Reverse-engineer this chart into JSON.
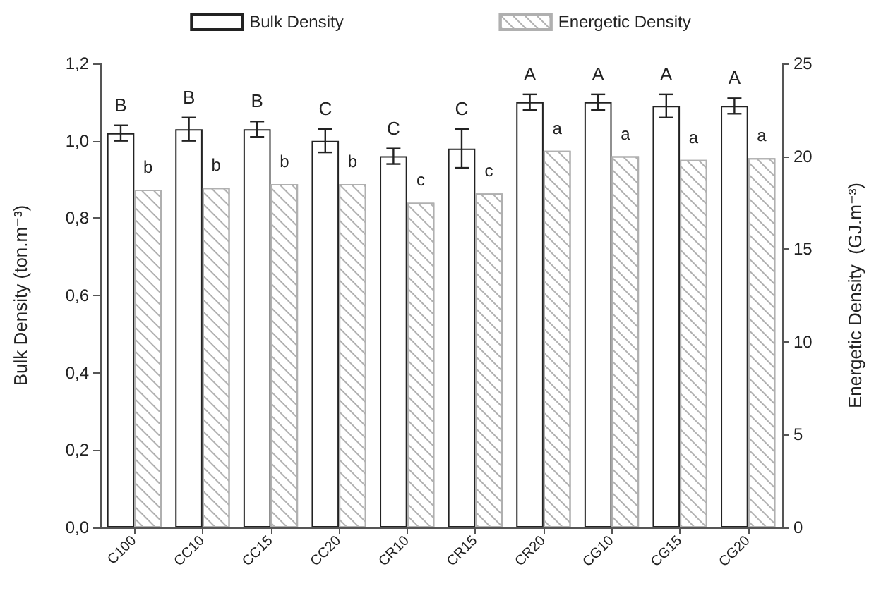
{
  "chart_data": {
    "type": "bar",
    "ylabel": "Bulk Density (ton.m⁻³)",
    "y2label": "Energetic Density  (GJ.m⁻³)",
    "categories": [
      "C100",
      "CC10",
      "CC15",
      "CC20",
      "CR10",
      "CR15",
      "CR20",
      "CG10",
      "CG15",
      "CG20"
    ],
    "series": [
      {
        "name": "Bulk Density",
        "color": "#ffffff",
        "values": [
          1.02,
          1.03,
          1.03,
          1.0,
          0.96,
          0.98,
          1.1,
          1.1,
          1.09,
          1.09
        ],
        "errors": [
          0.02,
          0.03,
          0.02,
          0.03,
          0.02,
          0.05,
          0.02,
          0.02,
          0.03,
          0.02
        ],
        "value_labels": [
          "B",
          "B",
          "B",
          "C",
          "C",
          "C",
          "A",
          "A",
          "A",
          "A"
        ]
      },
      {
        "name": "Energetic Density",
        "color": "#b0b0b0",
        "axis": "y2",
        "values": [
          18.2,
          18.3,
          18.5,
          18.5,
          17.5,
          18.0,
          20.3,
          20.0,
          19.8,
          19.9
        ],
        "value_labels": [
          "b",
          "b",
          "b",
          "b",
          "c",
          "c",
          "a",
          "a",
          "a",
          "a"
        ]
      }
    ],
    "ylim": [
      0,
      1.2
    ],
    "yticks": [
      {
        "value": 0,
        "label": "0,0"
      },
      {
        "value": 0.2,
        "label": "0,2"
      },
      {
        "value": 0.4,
        "label": "0,4"
      },
      {
        "value": 0.6,
        "label": "0,6"
      },
      {
        "value": 0.8,
        "label": "0,8"
      },
      {
        "value": 1,
        "label": "1,0"
      },
      {
        "value": 1.2,
        "label": "1,2"
      }
    ],
    "y2lim": [
      0,
      25
    ],
    "y2ticks": [
      0,
      5,
      10,
      15,
      20,
      25
    ],
    "grid": false,
    "legend": "top"
  }
}
